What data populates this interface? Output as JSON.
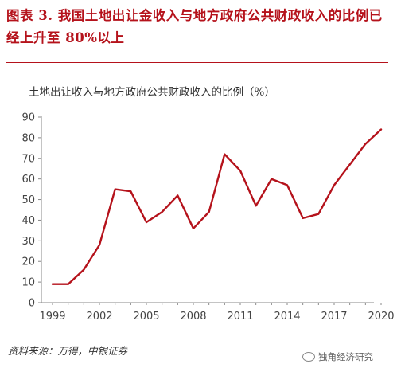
{
  "header": {
    "figure_label": "图表 3.",
    "title": "我国土地出让金收入与地方政府公共财政收入的比例已经上升至 80%以上"
  },
  "chart_data": {
    "type": "line",
    "title": "土地出让收入与地方政府公共财政收入的比例（%）",
    "xlabel": "",
    "ylabel": "",
    "x": [
      1999,
      2000,
      2001,
      2002,
      2003,
      2004,
      2005,
      2006,
      2007,
      2008,
      2009,
      2010,
      2011,
      2012,
      2013,
      2014,
      2015,
      2016,
      2017,
      2018,
      2019,
      2020
    ],
    "values": [
      9,
      9,
      16,
      28,
      55,
      54,
      39,
      44,
      52,
      36,
      44,
      72,
      64,
      47,
      60,
      57,
      41,
      43,
      57,
      67,
      77,
      84
    ],
    "ylim": [
      0,
      90
    ],
    "yticks": [
      "0",
      "10",
      "20",
      "30",
      "40",
      "50",
      "60",
      "70",
      "80",
      "90"
    ],
    "xticks": [
      "1999",
      "2002",
      "2005",
      "2008",
      "2011",
      "2014",
      "2017",
      "2020"
    ],
    "line_color": "#b5121b",
    "grid": false,
    "legend": "none"
  },
  "footer": {
    "source": "资料来源：万得，中银证券",
    "watermark": "独角经济研究"
  }
}
